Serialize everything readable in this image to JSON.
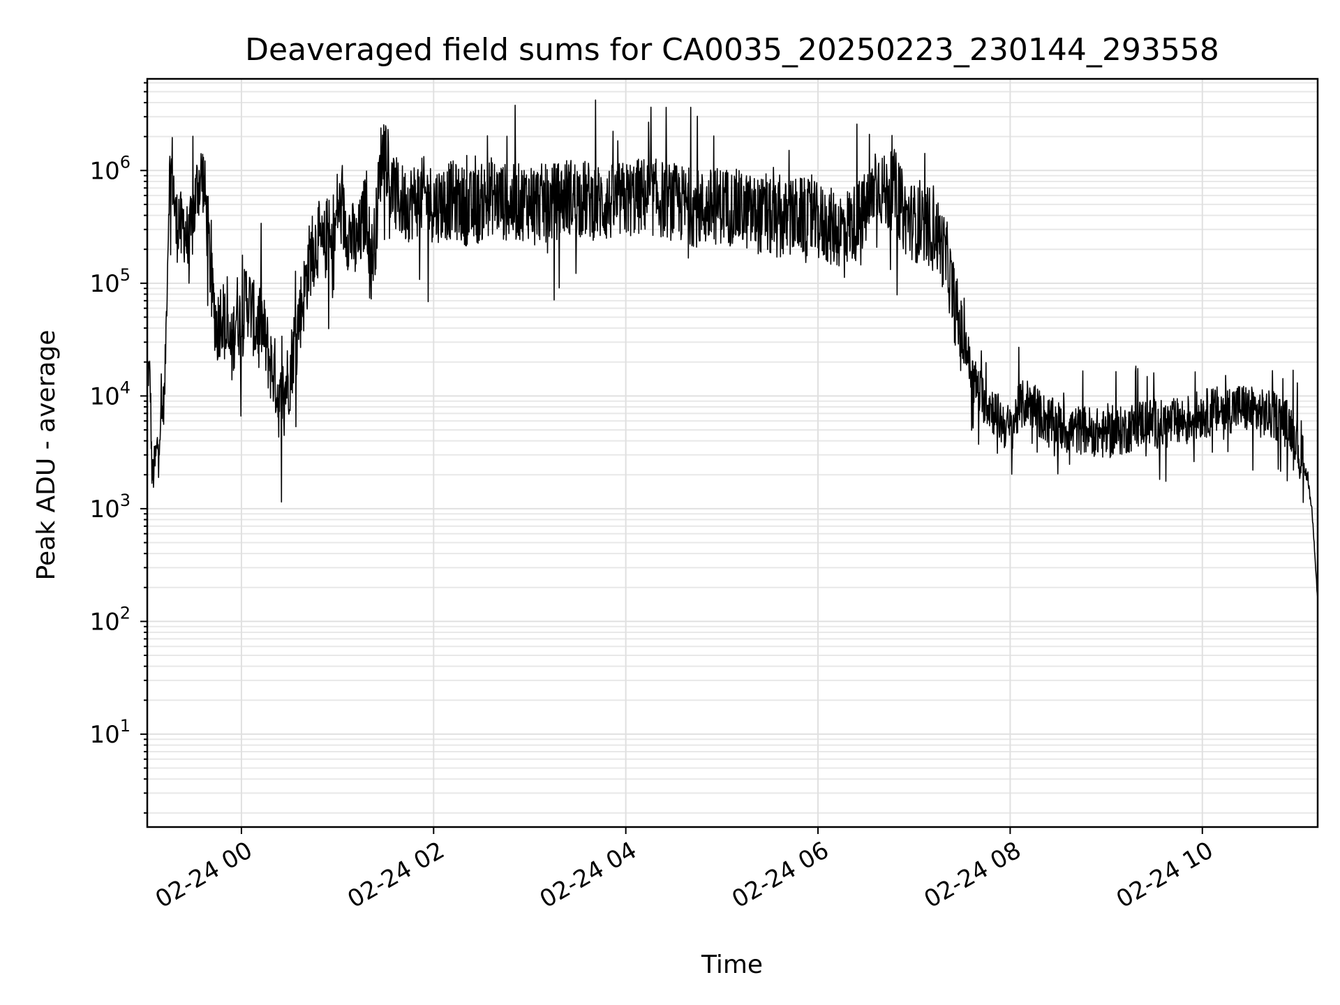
{
  "chart_data": {
    "type": "line",
    "title": "Deaveraged field sums for CA0035_20250223_230144_293558",
    "xlabel": "Time",
    "ylabel": "Peak ADU - average",
    "x_scale": "time",
    "y_scale": "log",
    "xlim": [
      "2025-02-23 23:01",
      "2025-02-24 11:12"
    ],
    "ylim": [
      1.5,
      6500000
    ],
    "x_tick_labels": [
      "02-24 00",
      "02-24 02",
      "02-24 04",
      "02-24 06",
      "02-24 08",
      "02-24 10"
    ],
    "y_tick_labels": [
      {
        "base": "10",
        "exp": "1"
      },
      {
        "base": "10",
        "exp": "2"
      },
      {
        "base": "10",
        "exp": "3"
      },
      {
        "base": "10",
        "exp": "4"
      },
      {
        "base": "10",
        "exp": "5"
      },
      {
        "base": "10",
        "exp": "6"
      }
    ],
    "grid": true,
    "line_color": "#000000",
    "x_unit": "hours since 2025-02-24 00:00",
    "series": [
      {
        "x": [
          -0.98,
          -0.95,
          -0.93,
          -0.9,
          -0.85,
          -0.8,
          -0.75,
          -0.72,
          -0.7,
          -0.68,
          -0.65,
          -0.62,
          -0.6,
          -0.55,
          -0.5,
          -0.45,
          -0.4,
          -0.35,
          -0.3,
          -0.25,
          -0.2,
          -0.15,
          -0.1,
          -0.05,
          0.0,
          0.05,
          0.1,
          0.15,
          0.2,
          0.25,
          0.3,
          0.35,
          0.4,
          0.45,
          0.5,
          0.55,
          0.6,
          0.65,
          0.7,
          0.75,
          0.8,
          0.85,
          0.9,
          0.95,
          1.0,
          1.05,
          1.1,
          1.15,
          1.2,
          1.25,
          1.3,
          1.35,
          1.4,
          1.45,
          1.5,
          1.55,
          1.6,
          1.7,
          1.8,
          1.9,
          2.0,
          2.2,
          2.4,
          2.6,
          2.8,
          3.0,
          3.2,
          3.4,
          3.6,
          3.8,
          4.0,
          4.2,
          4.4,
          4.6,
          4.8,
          5.0,
          5.2,
          5.4,
          5.6,
          5.8,
          6.0,
          6.2,
          6.4,
          6.55,
          6.6,
          6.7,
          6.8,
          6.9,
          7.0,
          7.1,
          7.2,
          7.25,
          7.3,
          7.35,
          7.4,
          7.45,
          7.5,
          7.55,
          7.6,
          7.7,
          7.8,
          7.9,
          8.0,
          8.1,
          8.2,
          8.3,
          8.4,
          8.5,
          8.6,
          8.8,
          9.0,
          9.2,
          9.4,
          9.6,
          9.8,
          10.0,
          10.2,
          10.4,
          10.6,
          10.8,
          10.95,
          11.0,
          11.05,
          11.1,
          11.15,
          11.18,
          11.2
        ],
        "y": [
          18000,
          15000,
          1800,
          2500,
          5000,
          10000,
          800000,
          1000000,
          600000,
          300000,
          400000,
          250000,
          350000,
          200000,
          400000,
          800000,
          900000,
          300000,
          70000,
          40000,
          60000,
          30000,
          25000,
          60000,
          40000,
          80000,
          60000,
          40000,
          50000,
          30000,
          20000,
          15000,
          8000,
          12000,
          15000,
          30000,
          50000,
          80000,
          150000,
          200000,
          250000,
          180000,
          300000,
          150000,
          500000,
          400000,
          300000,
          250000,
          200000,
          300000,
          500000,
          150000,
          300000,
          1200000,
          1600000,
          700000,
          600000,
          500000,
          550000,
          600000,
          500000,
          550000,
          450000,
          600000,
          500000,
          550000,
          500000,
          600000,
          550000,
          500000,
          550000,
          600000,
          550000,
          500000,
          450000,
          500000,
          450000,
          400000,
          350000,
          400000,
          350000,
          300000,
          350000,
          500000,
          900000,
          600000,
          700000,
          400000,
          350000,
          300000,
          350000,
          250000,
          200000,
          150000,
          80000,
          50000,
          30000,
          25000,
          15000,
          10000,
          8000,
          6000,
          5000,
          8000,
          9000,
          7000,
          6000,
          5500,
          5000,
          5000,
          4500,
          5000,
          6000,
          5500,
          6000,
          7000,
          7500,
          8000,
          7000,
          6500,
          5000,
          3500,
          2500,
          1800,
          800,
          300,
          150
        ]
      }
    ]
  }
}
